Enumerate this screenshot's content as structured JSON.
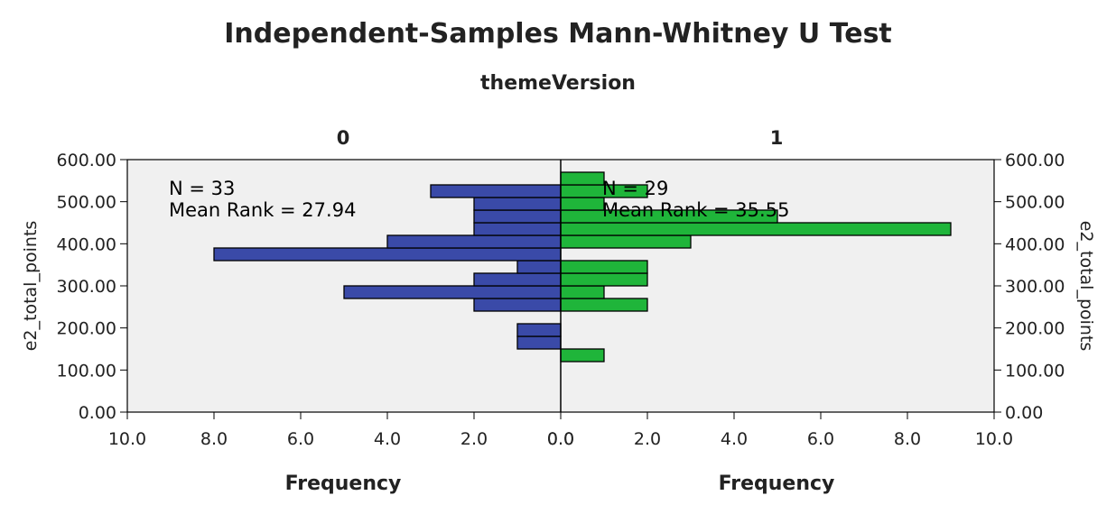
{
  "chart_data": {
    "type": "bar",
    "title": "Independent-Samples Mann-Whitney U Test",
    "subtitle": "themeVersion",
    "ylabel": "e2_total_points",
    "xlabel_left": "Frequency",
    "xlabel_right": "Frequency",
    "ylim": [
      0,
      600
    ],
    "xlim": [
      0,
      10
    ],
    "y_ticks": [
      "0.00",
      "100.00",
      "200.00",
      "300.00",
      "400.00",
      "500.00",
      "600.00"
    ],
    "x_ticks": [
      "10.0",
      "8.0",
      "6.0",
      "4.0",
      "2.0",
      "0.0"
    ],
    "x_ticks_right": [
      "0.0",
      "2.0",
      "4.0",
      "6.0",
      "8.0",
      "10.0"
    ],
    "bin_width": 30,
    "groups": [
      {
        "name": "0",
        "n_label": "N = 33",
        "mean_rank_label": "Mean Rank = 27.94",
        "color": "#3a4aa8",
        "bins": [
          {
            "y_from": 150,
            "y_to": 180,
            "count": 1
          },
          {
            "y_from": 180,
            "y_to": 210,
            "count": 1
          },
          {
            "y_from": 240,
            "y_to": 270,
            "count": 2
          },
          {
            "y_from": 270,
            "y_to": 300,
            "count": 5
          },
          {
            "y_from": 300,
            "y_to": 330,
            "count": 2
          },
          {
            "y_from": 330,
            "y_to": 360,
            "count": 1
          },
          {
            "y_from": 360,
            "y_to": 390,
            "count": 8
          },
          {
            "y_from": 390,
            "y_to": 420,
            "count": 4
          },
          {
            "y_from": 420,
            "y_to": 450,
            "count": 2
          },
          {
            "y_from": 450,
            "y_to": 480,
            "count": 2
          },
          {
            "y_from": 480,
            "y_to": 510,
            "count": 2
          },
          {
            "y_from": 510,
            "y_to": 540,
            "count": 3
          }
        ]
      },
      {
        "name": "1",
        "n_label": "N = 29",
        "mean_rank_label": "Mean Rank = 35.55",
        "color": "#1fb53a",
        "bins": [
          {
            "y_from": 120,
            "y_to": 150,
            "count": 1
          },
          {
            "y_from": 240,
            "y_to": 270,
            "count": 2
          },
          {
            "y_from": 270,
            "y_to": 300,
            "count": 1
          },
          {
            "y_from": 300,
            "y_to": 330,
            "count": 2
          },
          {
            "y_from": 330,
            "y_to": 360,
            "count": 2
          },
          {
            "y_from": 390,
            "y_to": 420,
            "count": 3
          },
          {
            "y_from": 420,
            "y_to": 450,
            "count": 9
          },
          {
            "y_from": 450,
            "y_to": 480,
            "count": 5
          },
          {
            "y_from": 480,
            "y_to": 510,
            "count": 1
          },
          {
            "y_from": 510,
            "y_to": 540,
            "count": 2
          },
          {
            "y_from": 540,
            "y_to": 570,
            "count": 1
          }
        ]
      }
    ],
    "plot_background": "#f0f0f0",
    "grid": false,
    "legend": "none"
  }
}
